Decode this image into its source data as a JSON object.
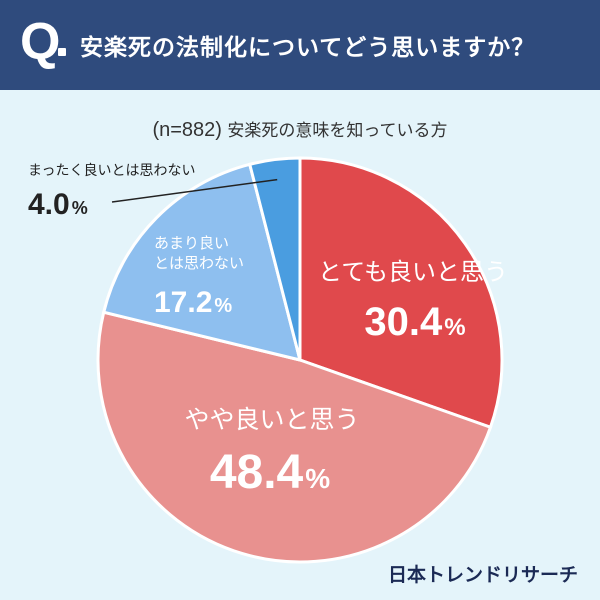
{
  "header": {
    "badge": "Q",
    "question": "安楽死の法制化についてどう思いますか？"
  },
  "subtitle": {
    "sample": "(n=882)",
    "text": "安楽死の意味を知っている方"
  },
  "brand": "日本トレンドリサーチ",
  "colors": {
    "header_bg": "#2f4b7d",
    "background": "#e4f4fa",
    "strongly_agree": "#e0494c",
    "agree": "#e8918f",
    "disagree": "#8ebfef",
    "strongly_disagree": "#4a9de0"
  },
  "chart_data": {
    "type": "pie",
    "title": "安楽死の法制化についてどう思いますか？",
    "start": "12 o'clock, clockwise",
    "slices": [
      {
        "label": "とても良いと思う",
        "value": 30.4,
        "display": "30.4",
        "unit": "%",
        "color": "#e0494c"
      },
      {
        "label": "やや良いと思う",
        "value": 48.4,
        "display": "48.4",
        "unit": "%",
        "color": "#e8918f"
      },
      {
        "label": "あまり良いとは思わない",
        "value": 17.2,
        "display": "17.2",
        "unit": "%",
        "color": "#8ebfef"
      },
      {
        "label": "まったく良いとは思わない",
        "value": 4.0,
        "display": "4.0",
        "unit": "%",
        "color": "#4a9de0"
      }
    ]
  }
}
